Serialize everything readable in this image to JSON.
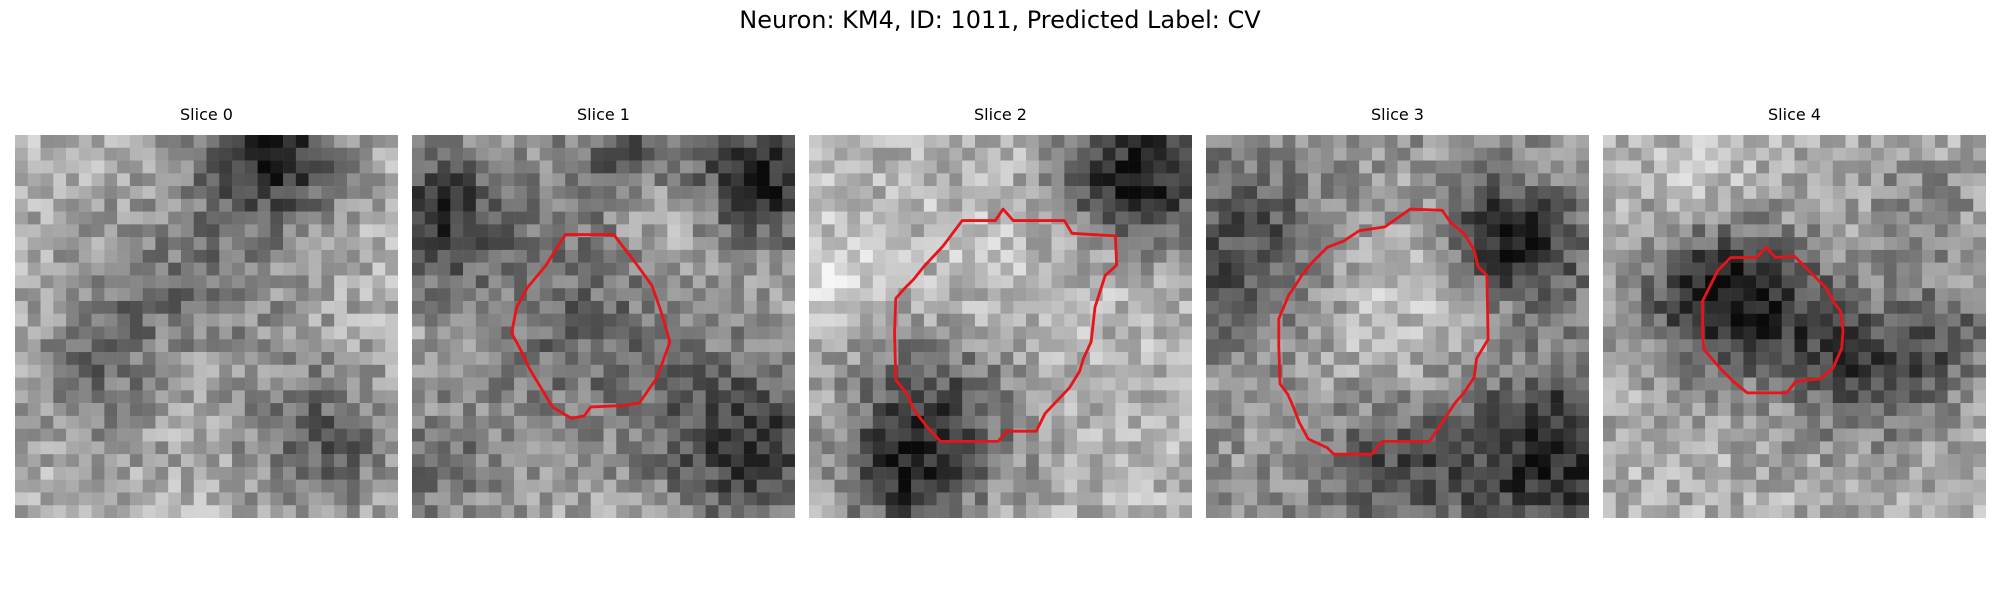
{
  "figure": {
    "title": "Neuron: KM4, ID: 1011, Predicted Label: CV"
  },
  "colors": {
    "outline": "#e8141a",
    "grayscale_min": "#0a0a0a",
    "grayscale_max": "#f4f4f4",
    "background": "#ffffff"
  },
  "panels": [
    {
      "title": "Slice 0",
      "has_outline": false,
      "outline_size": "none"
    },
    {
      "title": "Slice 1",
      "has_outline": true,
      "outline_size": "medium"
    },
    {
      "title": "Slice 2",
      "has_outline": true,
      "outline_size": "large"
    },
    {
      "title": "Slice 3",
      "has_outline": true,
      "outline_size": "large"
    },
    {
      "title": "Slice 4",
      "has_outline": true,
      "outline_size": "small"
    }
  ]
}
